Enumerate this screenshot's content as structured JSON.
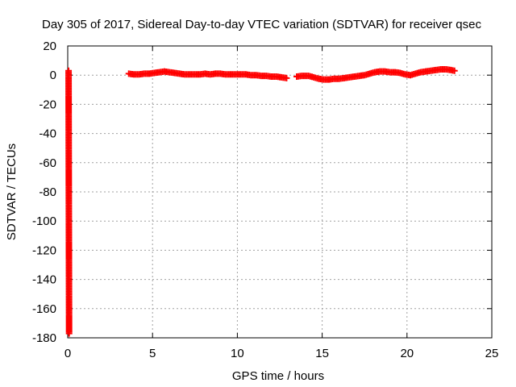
{
  "chart_data": {
    "type": "scatter",
    "title": "Day 305 of 2017, Sidereal Day-to-day VTEC variation (SDTVAR) for receiver qsec",
    "xlabel": "GPS time / hours",
    "ylabel": "SDTVAR / TECUs",
    "xlim": [
      0,
      25
    ],
    "ylim": [
      -180,
      20
    ],
    "xticks": [
      "0",
      "5",
      "10",
      "15",
      "20",
      "25"
    ],
    "yticks": [
      "20",
      "0",
      "-20",
      "-40",
      "-60",
      "-80",
      "-100",
      "-120",
      "-140",
      "-160",
      "-180"
    ],
    "grid": true,
    "marker": "plus",
    "color": "#ff0000",
    "series": [
      {
        "x": [
          0.05,
          0.08,
          3.6,
          3.9,
          4.2,
          4.5,
          4.8,
          5.1,
          5.4,
          5.7,
          6.0,
          6.3,
          6.6,
          6.9,
          7.2,
          7.5,
          7.8,
          8.1,
          8.4,
          8.7,
          9.0,
          9.3,
          9.6,
          9.9,
          10.2,
          10.5,
          10.8,
          11.1,
          11.4,
          11.7,
          12.0,
          12.3,
          12.6,
          12.9,
          13.5,
          13.8,
          14.2,
          14.5,
          14.8,
          15.1,
          15.4,
          15.7,
          16.0,
          16.3,
          16.6,
          16.9,
          17.2,
          17.5,
          17.8,
          18.1,
          18.4,
          18.7,
          19.0,
          19.3,
          19.6,
          19.9,
          20.2,
          20.5,
          20.8,
          21.1,
          21.4,
          21.7,
          22.0,
          22.3,
          22.6,
          22.8
        ],
        "y": [
          3,
          -177,
          1,
          0.5,
          0.5,
          1,
          1,
          1.5,
          2,
          2.5,
          2,
          1.5,
          1,
          0.5,
          0.5,
          0.5,
          0.5,
          1,
          0.5,
          1,
          1,
          0.5,
          0.5,
          0.5,
          0.5,
          0.5,
          0,
          0,
          -0.5,
          -0.5,
          -1,
          -1,
          -1.5,
          -2,
          -1,
          -0.5,
          -0.5,
          -1.5,
          -2.5,
          -3,
          -3,
          -2.5,
          -2.5,
          -2,
          -1.5,
          -1,
          -0.5,
          0,
          1,
          2,
          2.5,
          2.5,
          2,
          2,
          1.5,
          0.5,
          0,
          1,
          2,
          2.5,
          3,
          3.5,
          4,
          4,
          3.5,
          3
        ]
      }
    ]
  }
}
